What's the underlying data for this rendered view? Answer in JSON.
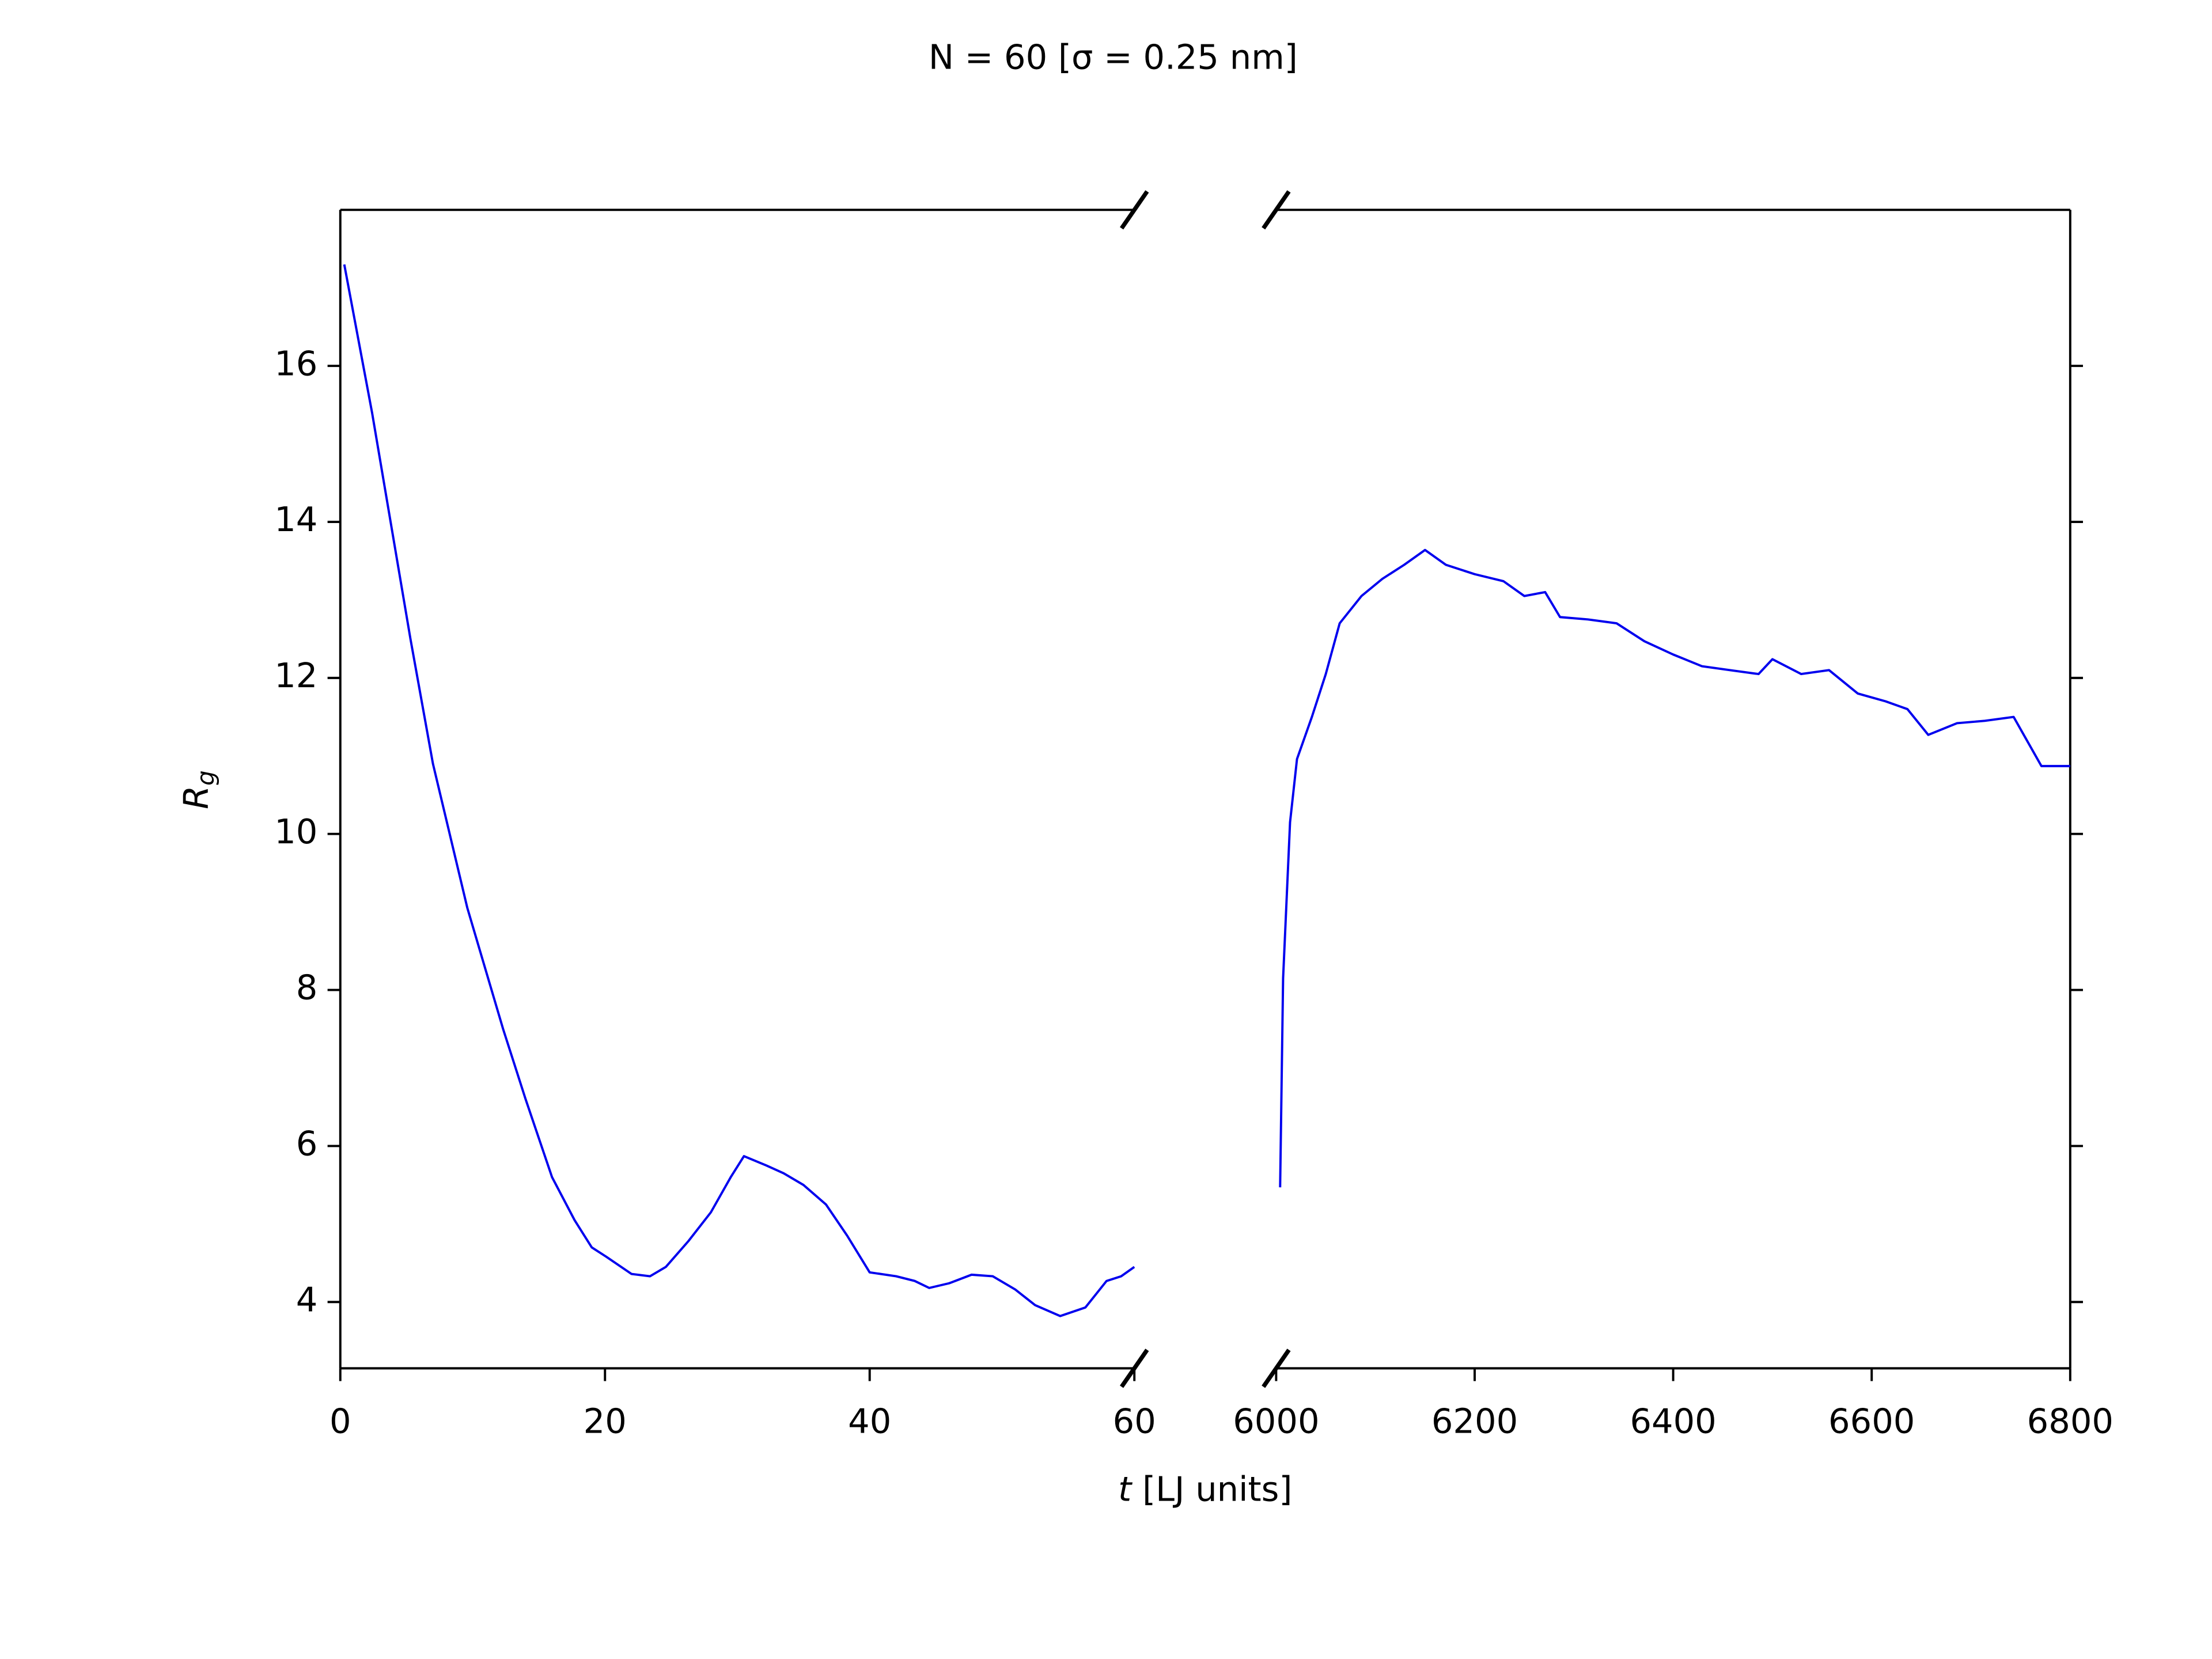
{
  "chart_data": [
    {
      "type": "line",
      "title": "N = 60 [σ = 0.25 nm]",
      "xlabel": "t [LJ units]",
      "ylabel": "Rg",
      "color": "#0000ee",
      "x": [
        0.3,
        2.4,
        5.3,
        7,
        9.6,
        12.3,
        14,
        16,
        17.7,
        19,
        20.1,
        22,
        23.4,
        24.6,
        26.3,
        28,
        29.5,
        30.5,
        32.2,
        33.5,
        35,
        36.7,
        38.3,
        40,
        42,
        43.4,
        44.5,
        46,
        47.7,
        49.3,
        51,
        52.5,
        54.4,
        56.3,
        57.9,
        59,
        60
      ],
      "values": [
        17.3,
        15.4,
        12.5,
        10.9,
        9.05,
        7.5,
        6.6,
        5.6,
        5.05,
        4.7,
        4.58,
        4.36,
        4.33,
        4.45,
        4.78,
        5.15,
        5.6,
        5.87,
        5.75,
        5.65,
        5.5,
        5.25,
        4.85,
        4.38,
        4.33,
        4.27,
        4.18,
        4.24,
        4.35,
        4.33,
        4.16,
        3.96,
        3.82,
        3.93,
        4.27,
        4.33,
        4.45
      ],
      "xlim": [
        0,
        60
      ],
      "ylim": [
        3.15,
        18
      ],
      "xticks": [
        0,
        20,
        40,
        60
      ],
      "yticks": [
        4,
        6,
        8,
        10,
        12,
        14,
        16
      ]
    },
    {
      "type": "line",
      "color": "#0000ee",
      "x": [
        6004,
        6007,
        6014,
        6021,
        6036,
        6050,
        6064,
        6086,
        6107,
        6129,
        6150,
        6171,
        6200,
        6229,
        6250,
        6271,
        6286,
        6314,
        6343,
        6371,
        6400,
        6429,
        6457,
        6486,
        6500,
        6529,
        6557,
        6586,
        6614,
        6636,
        6657,
        6686,
        6714,
        6743,
        6771,
        6786,
        6800
      ],
      "values": [
        5.47,
        8.15,
        10.15,
        10.96,
        11.5,
        12.05,
        12.7,
        13.05,
        13.27,
        13.45,
        13.64,
        13.45,
        13.33,
        13.24,
        13.05,
        13.1,
        12.78,
        12.75,
        12.7,
        12.47,
        12.3,
        12.15,
        12.1,
        12.05,
        12.24,
        12.05,
        12.1,
        11.8,
        11.7,
        11.6,
        11.27,
        11.42,
        11.45,
        11.5,
        10.87,
        10.87,
        10.87
      ],
      "xlim": [
        6000,
        6800
      ],
      "ylim": [
        3.15,
        18
      ],
      "xticks": [
        6000,
        6200,
        6400,
        6600,
        6800
      ],
      "yticks": [
        4,
        6,
        8,
        10,
        12,
        14,
        16
      ]
    }
  ]
}
